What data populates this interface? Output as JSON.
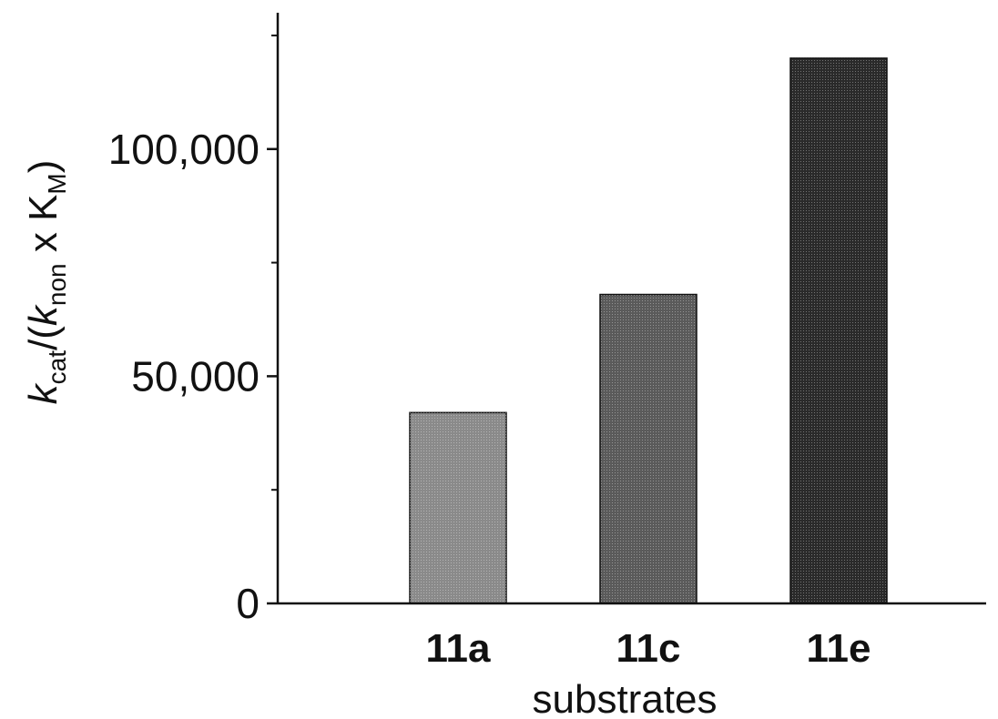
{
  "chart_data": {
    "type": "bar",
    "categories": [
      "11a",
      "11c",
      "11e"
    ],
    "values": [
      42000,
      68000,
      120000
    ],
    "fills": [
      "#8a8a8a",
      "#5a5a5a",
      "#2a2a2a"
    ],
    "xlabel": "substrates",
    "ylabel": {
      "k": "k",
      "cat": "cat",
      "mid": "/(",
      "knon": "k",
      "non": "non",
      "times": " x K",
      "M": "M",
      "close": ")"
    },
    "yticks": [
      0,
      50000,
      100000
    ],
    "ytick_labels": [
      "0",
      "50,000",
      "100,000"
    ],
    "yminor": [
      25000,
      75000,
      125000
    ],
    "ylim": [
      0,
      130000
    ],
    "grid": false
  }
}
